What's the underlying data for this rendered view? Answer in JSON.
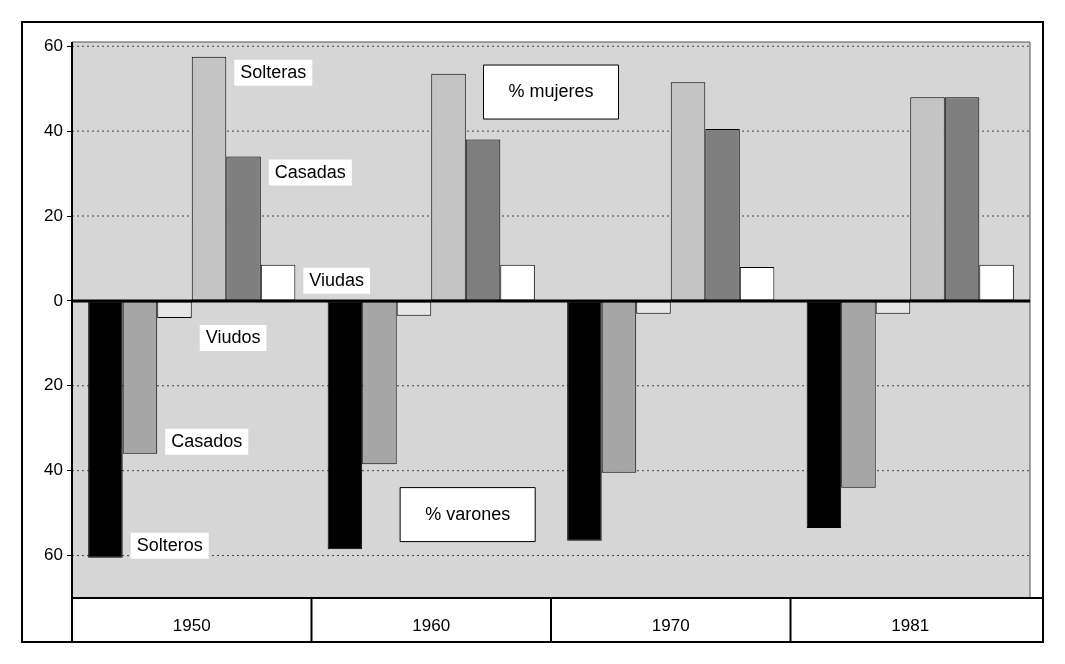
{
  "chart_data": {
    "type": "bar",
    "categories": [
      "1950",
      "1960",
      "1970",
      "1981"
    ],
    "series": [
      {
        "name": "Solteros",
        "color": "#000000",
        "values": [
          -60.5,
          -58.5,
          -56.5,
          -53.5
        ]
      },
      {
        "name": "Casados",
        "color": "#a6a6a6",
        "values": [
          -36,
          -38.5,
          -40.5,
          -44
        ]
      },
      {
        "name": "Viudos",
        "color": "#e6e6e6",
        "values": [
          -4,
          -3.5,
          -3,
          -3
        ]
      },
      {
        "name": "Solteras",
        "color": "#c4c4c4",
        "values": [
          57.5,
          53.5,
          51.5,
          48
        ]
      },
      {
        "name": "Casadas",
        "color": "#7f7f7f",
        "values": [
          34,
          38,
          40.5,
          48
        ]
      },
      {
        "name": "Viudas",
        "color": "#ffffff",
        "values": [
          8.5,
          8.5,
          8,
          8.5
        ]
      }
    ],
    "ylim": [
      -70,
      61
    ],
    "yticks": [
      {
        "value": -60,
        "label": "60"
      },
      {
        "value": -40,
        "label": "40"
      },
      {
        "value": -20,
        "label": "20"
      },
      0,
      20,
      40,
      60
    ],
    "grid": "y",
    "annotations": [
      "% mujeres",
      "% varones"
    ]
  }
}
